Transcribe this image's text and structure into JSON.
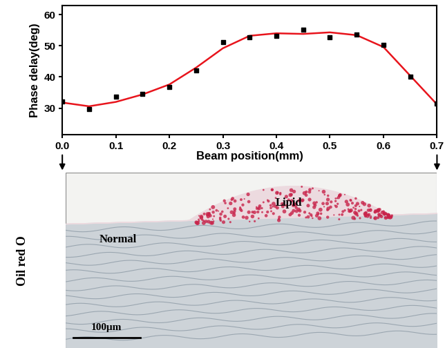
{
  "chart_data": {
    "type": "line",
    "x_label": "Beam position(mm)",
    "y_label": "Phase delay(deg)",
    "x": [
      0.0,
      0.05,
      0.1,
      0.15,
      0.2,
      0.25,
      0.3,
      0.35,
      0.4,
      0.45,
      0.5,
      0.55,
      0.6,
      0.65,
      0.7
    ],
    "series": [
      {
        "type": "scatter",
        "color": "#000000",
        "marker": "square",
        "values": [
          32.2,
          29.6,
          33.6,
          34.5,
          36.8,
          42.2,
          51.2,
          52.8,
          53.2,
          55.2,
          52.8,
          53.6,
          50.2,
          40.2,
          31.5
        ]
      },
      {
        "type": "line",
        "color": "#e8141c",
        "line_style": "solid",
        "values": [
          31.8,
          30.6,
          32.0,
          34.4,
          37.6,
          43.0,
          49.2,
          53.2,
          54.0,
          53.8,
          54.3,
          53.4,
          49.6,
          40.4,
          31.2
        ]
      }
    ],
    "xlim": [
      0.0,
      0.7
    ],
    "xticks": [
      0.0,
      0.1,
      0.2,
      0.3,
      0.4,
      0.5,
      0.6,
      0.7
    ],
    "ylim": [
      21.5,
      63
    ],
    "yticks": [
      30,
      40,
      50,
      60
    ],
    "grid": false
  },
  "image_panel": {
    "stain": "Oil red O",
    "labels": [
      "Lipid",
      "Normal"
    ],
    "scale_bar": "100μm"
  }
}
